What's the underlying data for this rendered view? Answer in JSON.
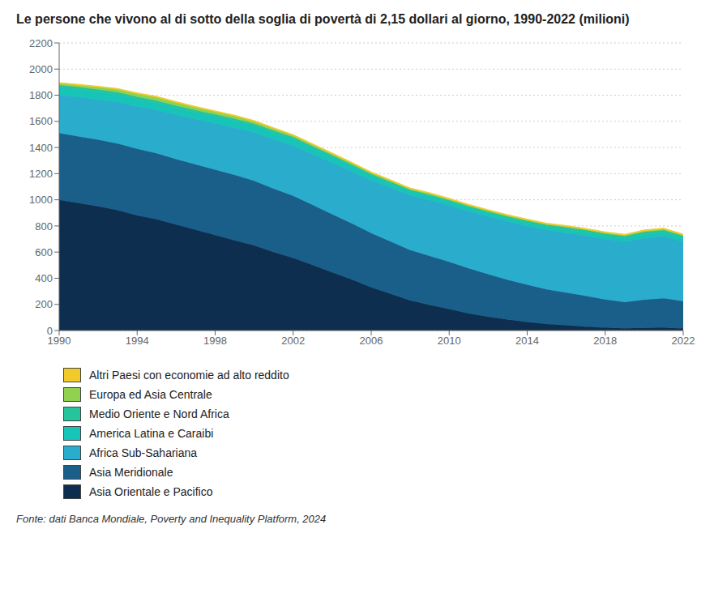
{
  "chart_data": {
    "type": "area",
    "stacked": true,
    "title": "Le persone che vivono al di sotto della soglia di povertà di 2,15 dollari al giorno, 1990-2022 (milioni)",
    "annotations": [
      "Fonte: dati Banca Mondiale, Poverty and Inequality Platform, 2024"
    ],
    "x": [
      1990,
      1991,
      1992,
      1993,
      1994,
      1995,
      1996,
      1997,
      1998,
      1999,
      2000,
      2001,
      2002,
      2003,
      2004,
      2005,
      2006,
      2007,
      2008,
      2009,
      2010,
      2011,
      2012,
      2013,
      2014,
      2015,
      2016,
      2017,
      2018,
      2019,
      2020,
      2021,
      2022
    ],
    "series": [
      {
        "name": "Asia Orientale e Pacifico",
        "color": "#0d2e4e",
        "values": [
          1000,
          975,
          950,
          920,
          880,
          850,
          810,
          770,
          730,
          690,
          650,
          600,
          555,
          500,
          445,
          390,
          330,
          280,
          230,
          195,
          165,
          130,
          105,
          83,
          65,
          50,
          40,
          30,
          22,
          17,
          20,
          22,
          15
        ]
      },
      {
        "name": "Asia Meridionale",
        "color": "#1a5f8a",
        "values": [
          510,
          510,
          510,
          510,
          510,
          505,
          500,
          500,
          500,
          500,
          495,
          485,
          475,
          460,
          445,
          430,
          415,
          400,
          385,
          375,
          360,
          345,
          325,
          305,
          285,
          265,
          250,
          235,
          215,
          200,
          215,
          225,
          210
        ]
      },
      {
        "name": "Africa Sub-Sahariana",
        "color": "#2aadcc",
        "values": [
          290,
          300,
          308,
          318,
          325,
          332,
          340,
          347,
          355,
          362,
          370,
          378,
          385,
          390,
          395,
          400,
          405,
          412,
          420,
          428,
          433,
          438,
          443,
          447,
          450,
          453,
          457,
          460,
          462,
          464,
          470,
          475,
          455
        ]
      },
      {
        "name": "America Latina e Caraibi",
        "color": "#17c4b8",
        "values": [
          60,
          59,
          58,
          57,
          56,
          55,
          53,
          52,
          52,
          53,
          52,
          51,
          49,
          46,
          42,
          38,
          35,
          32,
          29,
          30,
          28,
          27,
          25,
          24,
          24,
          24,
          26,
          25,
          24,
          24,
          29,
          27,
          26
        ]
      },
      {
        "name": "Medio Oriente e Nord Africa",
        "color": "#26c49a",
        "values": [
          18,
          18,
          18,
          18,
          17,
          17,
          17,
          16,
          16,
          16,
          15,
          15,
          15,
          14,
          14,
          13,
          13,
          13,
          12,
          12,
          12,
          12,
          13,
          14,
          15,
          16,
          17,
          18,
          18,
          18,
          21,
          20,
          18
        ]
      },
      {
        "name": "Europa ed Asia Centrale",
        "color": "#90d14f",
        "values": [
          10,
          13,
          16,
          20,
          22,
          24,
          23,
          21,
          19,
          18,
          16,
          14,
          11,
          10,
          9,
          8,
          7,
          7,
          6,
          6,
          5,
          5,
          5,
          5,
          5,
          5,
          5,
          5,
          5,
          5,
          6,
          6,
          5
        ]
      },
      {
        "name": "Altri Paesi con economie ad alto reddito",
        "color": "#f2ca2a",
        "values": [
          8,
          8,
          8,
          8,
          8,
          8,
          8,
          8,
          8,
          8,
          8,
          8,
          8,
          8,
          8,
          8,
          8,
          8,
          8,
          8,
          8,
          8,
          8,
          8,
          8,
          8,
          8,
          8,
          8,
          8,
          8,
          8,
          8
        ]
      }
    ],
    "xlim": [
      1990,
      2022
    ],
    "xticks": [
      1990,
      1994,
      1998,
      2002,
      2006,
      2010,
      2014,
      2018,
      2022
    ],
    "ylim": [
      0,
      2200
    ],
    "yticks": [
      0,
      200,
      400,
      600,
      800,
      1000,
      1200,
      1400,
      1600,
      1800,
      2000,
      2200
    ],
    "grid": true,
    "legend": "bottom"
  }
}
